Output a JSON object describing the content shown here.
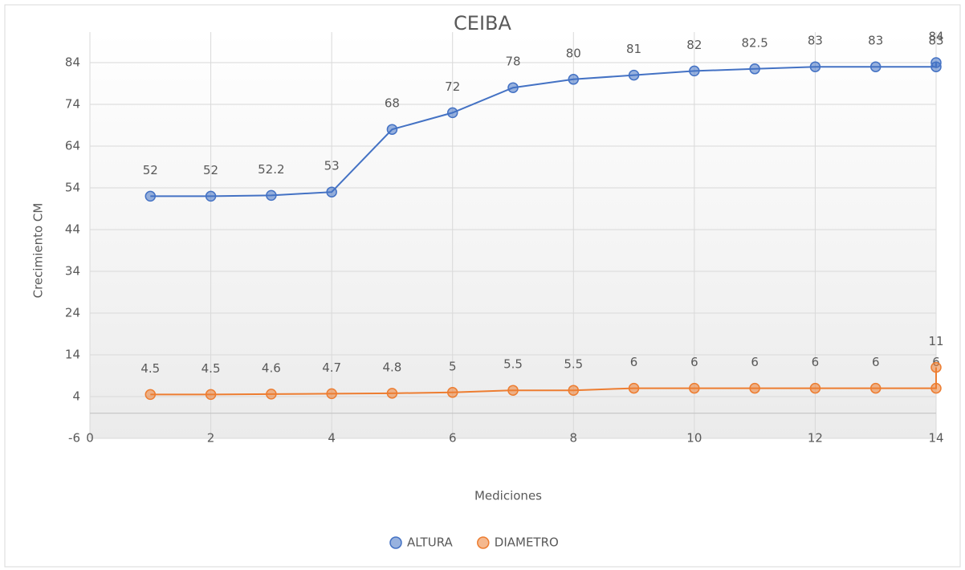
{
  "chart_data": {
    "type": "scatter",
    "title": "CEIBA",
    "x_label": "Mediciones",
    "y_label": "Crecimiento CM",
    "x": [
      1,
      2,
      3,
      4,
      5,
      6,
      7,
      8,
      9,
      10,
      11,
      12,
      13,
      14,
      14
    ],
    "series": [
      {
        "name": "ALTURA",
        "color": "#4472c4",
        "values": [
          52,
          52,
          52.2,
          53,
          68,
          72,
          78,
          80,
          81,
          82,
          82.5,
          83,
          83,
          83,
          84
        ]
      },
      {
        "name": "DIAMETRO",
        "color": "#ed7d31",
        "values": [
          4.5,
          4.5,
          4.6,
          4.7,
          4.8,
          5,
          5.5,
          5.5,
          6,
          6,
          6,
          6,
          6,
          6,
          11
        ]
      }
    ],
    "xlim": [
      0,
      14
    ],
    "xticks": [
      0,
      2,
      4,
      6,
      8,
      10,
      12,
      14
    ],
    "ylim": [
      -6,
      84
    ],
    "yticks": [
      -6,
      4,
      14,
      24,
      34,
      44,
      54,
      64,
      74,
      84
    ],
    "grid": true,
    "legend": "bottom"
  }
}
